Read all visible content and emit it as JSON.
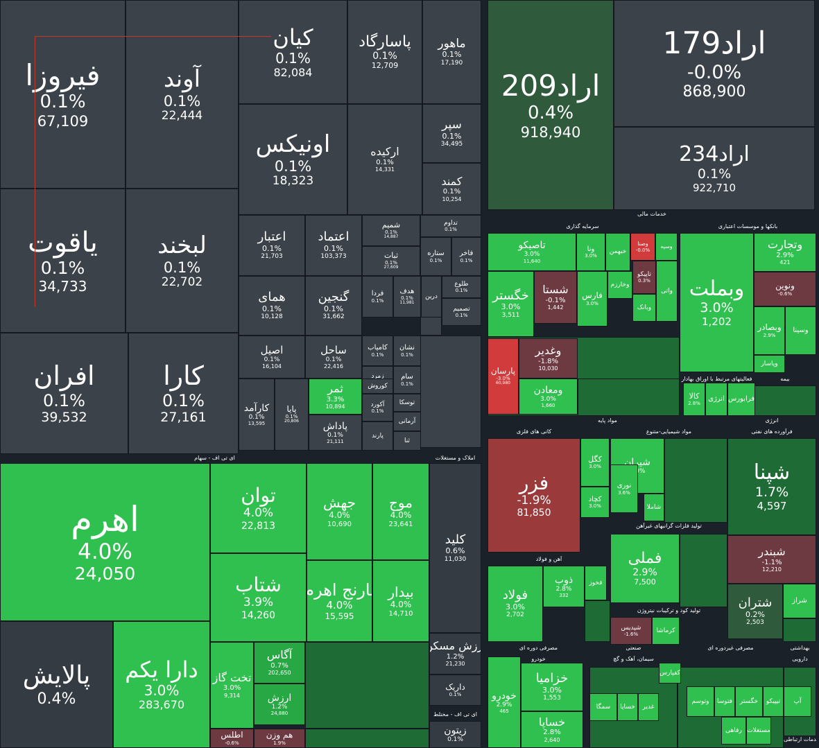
{
  "colors": {
    "neutral": "#3c4249",
    "neutral_dark": "#353b42",
    "green": "#30c04f",
    "green_mid": "#28a745",
    "green_dark": "#1e6b35",
    "green_dim": "#2f5a3c",
    "red": "#d13b3b",
    "red_dark": "#9a3a3a",
    "maroon": "#6e3a42",
    "background": "#1b2129"
  },
  "chart_data": {
    "type": "treemap",
    "groups": [
      {
        "name": "خدمات مالی"
      },
      {
        "name": "سرمایه گذاری"
      },
      {
        "name": "بانکها و موسسات اعتباری"
      },
      {
        "name": "فعالیتهای مرتبط با اوراق بهادار"
      },
      {
        "name": "بیمه"
      },
      {
        "name": "مواد پایه"
      },
      {
        "name": "کانی های فلزی"
      },
      {
        "name": "مواد شیمیایی-متنوع"
      },
      {
        "name": "تولید فلزات گرانبهای غیرآهن"
      },
      {
        "name": "آهن و فولاد"
      },
      {
        "name": "تولید کود و ترکیبات نیتروژن"
      },
      {
        "name": "انرژی"
      },
      {
        "name": "فرآورده های نفتی"
      },
      {
        "name": "ای تی اف - سهام"
      },
      {
        "name": "املاک و مستغلات"
      },
      {
        "name": "ای تی اف - مختلط"
      },
      {
        "name": "مصرفی دوره ای"
      },
      {
        "name": "خودرو"
      },
      {
        "name": "صنعتی"
      },
      {
        "name": "سیمان، آهک و گچ"
      },
      {
        "name": "مصرفی غیردوره ای"
      },
      {
        "name": "بهداشتی"
      },
      {
        "name": "دارویی"
      },
      {
        "name": "خدمات ارتباطی"
      }
    ],
    "tiles": [
      {
        "symbol": "فیروزا",
        "change": "0.1%",
        "volume": "67,109"
      },
      {
        "symbol": "آوند",
        "change": "0.1%",
        "volume": "22,444"
      },
      {
        "symbol": "کیان",
        "change": "0.1%",
        "volume": "82,084"
      },
      {
        "symbol": "پاسارگاد",
        "change": "0.1%",
        "volume": "12,709"
      },
      {
        "symbol": "ماهور",
        "change": "0.1%",
        "volume": "17,190"
      },
      {
        "symbol": "اونیکس",
        "change": "0.1%",
        "volume": "18,323"
      },
      {
        "symbol": "ارکیده",
        "change": "0.1%",
        "volume": "14,331"
      },
      {
        "symbol": "سپر",
        "change": "0.1%",
        "volume": "34,495"
      },
      {
        "symbol": "کمند",
        "change": "0.1%",
        "volume": "10,254"
      },
      {
        "symbol": "یاقوت",
        "change": "0.1%",
        "volume": "34,733"
      },
      {
        "symbol": "لبخند",
        "change": "0.1%",
        "volume": "22,702"
      },
      {
        "symbol": "اعتبار",
        "change": "0.1%",
        "volume": "21,703"
      },
      {
        "symbol": "اعتماد",
        "change": "0.1%",
        "volume": "103,373"
      },
      {
        "symbol": "شمیم",
        "change": "0.1%",
        "volume": "14,887"
      },
      {
        "symbol": "ثبات",
        "change": "0.1%",
        "volume": "27,609"
      },
      {
        "symbol": "تداوم",
        "change": "0.1%",
        "volume": ""
      },
      {
        "symbol": "ستاره",
        "change": "0.1%",
        "volume": ""
      },
      {
        "symbol": "فاخر",
        "change": "0.1%",
        "volume": ""
      },
      {
        "symbol": "همای",
        "change": "0.1%",
        "volume": "10,128"
      },
      {
        "symbol": "گنجین",
        "change": "0.1%",
        "volume": "31,662"
      },
      {
        "symbol": "فردا",
        "change": "0.1%",
        "volume": ""
      },
      {
        "symbol": "هدف",
        "change": "0.1%",
        "volume": "11,981"
      },
      {
        "symbol": "درین",
        "change": "",
        "volume": ""
      },
      {
        "symbol": "طلوع",
        "change": "0.1%",
        "volume": ""
      },
      {
        "symbol": "تصمیم",
        "change": "0.1%",
        "volume": ""
      },
      {
        "symbol": "افران",
        "change": "0.1%",
        "volume": "39,532"
      },
      {
        "symbol": "کارا",
        "change": "0.1%",
        "volume": "27,161"
      },
      {
        "symbol": "اصیل",
        "change": "0.1%",
        "volume": "16,104"
      },
      {
        "symbol": "ساحل",
        "change": "0.1%",
        "volume": "22,416"
      },
      {
        "symbol": "کامیاب",
        "change": "0.1%",
        "volume": ""
      },
      {
        "symbol": "نشان",
        "change": "0.1%",
        "volume": ""
      },
      {
        "symbol": "زمرد",
        "change": "",
        "volume": ""
      },
      {
        "symbol": "کوروش",
        "change": "",
        "volume": ""
      },
      {
        "symbol": "سام",
        "change": "0.1%",
        "volume": ""
      },
      {
        "symbol": "ثمر",
        "change": "3.3%",
        "volume": "10,894"
      },
      {
        "symbol": "آکورد",
        "change": "0.1%",
        "volume": ""
      },
      {
        "symbol": "توسکا",
        "change": "",
        "volume": ""
      },
      {
        "symbol": "کارآمد",
        "change": "0.1%",
        "volume": "13,595"
      },
      {
        "symbol": "پایا",
        "change": "0.1%",
        "volume": "20,806"
      },
      {
        "symbol": "پاداش",
        "change": "0.1%",
        "volume": "21,111"
      },
      {
        "symbol": "آرمانی",
        "change": "",
        "volume": ""
      },
      {
        "symbol": "پارند",
        "change": "",
        "volume": ""
      },
      {
        "symbol": "ثنا",
        "change": "",
        "volume": ""
      },
      {
        "symbol": "اراد209",
        "change": "0.4%",
        "volume": "918,940"
      },
      {
        "symbol": "اراد179",
        "change": "-0.0%",
        "volume": "868,900"
      },
      {
        "symbol": "اراد234",
        "change": "0.1%",
        "volume": "922,710"
      },
      {
        "symbol": "تاصیکو",
        "change": "3.0%",
        "volume": "11,640"
      },
      {
        "symbol": "ونا",
        "change": "3.0%",
        "volume": ""
      },
      {
        "symbol": "خبهمن",
        "change": "",
        "volume": ""
      },
      {
        "symbol": "وصنا",
        "change": "-0.0%",
        "volume": ""
      },
      {
        "symbol": "وسپه",
        "change": "",
        "volume": ""
      },
      {
        "symbol": "خگستر",
        "change": "3.0%",
        "volume": "3,511"
      },
      {
        "symbol": "شستا",
        "change": "-0.1%",
        "volume": "1,442"
      },
      {
        "symbol": "فارس",
        "change": "3.0%",
        "volume": ""
      },
      {
        "symbol": "وخارزم",
        "change": "",
        "volume": ""
      },
      {
        "symbol": "تاپیکو",
        "change": "0.3%",
        "volume": ""
      },
      {
        "symbol": "وبانک",
        "change": "",
        "volume": ""
      },
      {
        "symbol": "واتی",
        "change": "",
        "volume": ""
      },
      {
        "symbol": "وتجارت",
        "change": "2.9%",
        "volume": "421"
      },
      {
        "symbol": "وبملت",
        "change": "3.0%",
        "volume": "1,202"
      },
      {
        "symbol": "ونوین",
        "change": "-0.6%",
        "volume": ""
      },
      {
        "symbol": "وبصادر",
        "change": "2.9%",
        "volume": ""
      },
      {
        "symbol": "وسینا",
        "change": "",
        "volume": ""
      },
      {
        "symbol": "وپاسار",
        "change": "",
        "volume": ""
      },
      {
        "symbol": "پارسان",
        "change": "-3.0%",
        "volume": "60,980"
      },
      {
        "symbol": "وغدیر",
        "change": "-1.8%",
        "volume": "10,030"
      },
      {
        "symbol": "ومعادن",
        "change": "3.0%",
        "volume": "1,660"
      },
      {
        "symbol": "کالا",
        "change": "2.8%",
        "volume": ""
      },
      {
        "symbol": "انرژی",
        "change": "",
        "volume": ""
      },
      {
        "symbol": "فرابورس",
        "change": "",
        "volume": ""
      },
      {
        "symbol": "فزر",
        "change": "-1.9%",
        "volume": "81,850"
      },
      {
        "symbol": "کگل",
        "change": "3.0%",
        "volume": ""
      },
      {
        "symbol": "کچاد",
        "change": "3.0%",
        "volume": ""
      },
      {
        "symbol": "شیران",
        "change": "3.0%",
        "volume": ""
      },
      {
        "symbol": "نوری",
        "change": "3.6%",
        "volume": ""
      },
      {
        "symbol": "شاملا",
        "change": "",
        "volume": ""
      },
      {
        "symbol": "فملی",
        "change": "2.9%",
        "volume": "7,500"
      },
      {
        "symbol": "فولاد",
        "change": "3.0%",
        "volume": "2,702"
      },
      {
        "symbol": "ذوب",
        "change": "2.8%",
        "volume": "332"
      },
      {
        "symbol": "فخوز",
        "change": "",
        "volume": ""
      },
      {
        "symbol": "شپدیس",
        "change": "-1.6%",
        "volume": ""
      },
      {
        "symbol": "کرماشا",
        "change": "",
        "volume": ""
      },
      {
        "symbol": "شپنا",
        "change": "1.7%",
        "volume": "4,597"
      },
      {
        "symbol": "شبندر",
        "change": "-1.1%",
        "volume": "12,210"
      },
      {
        "symbol": "شتران",
        "change": "0.2%",
        "volume": "2,503"
      },
      {
        "symbol": "شراز",
        "change": "",
        "volume": ""
      },
      {
        "symbol": "اهرم",
        "change": "4.0%",
        "volume": "24,050"
      },
      {
        "symbol": "توان",
        "change": "4.0%",
        "volume": "22,813"
      },
      {
        "symbol": "جهش",
        "change": "4.0%",
        "volume": "10,690"
      },
      {
        "symbol": "موج",
        "change": "4.0%",
        "volume": "23,641"
      },
      {
        "symbol": "کلید",
        "change": "0.6%",
        "volume": "11,030"
      },
      {
        "symbol": "شتاب",
        "change": "3.9%",
        "volume": "14,260"
      },
      {
        "symbol": "نارنج اهرم",
        "change": "4.0%",
        "volume": "15,595"
      },
      {
        "symbol": "بیدار",
        "change": "4.0%",
        "volume": "14,710"
      },
      {
        "symbol": "پالایش",
        "change": "0.4%",
        "volume": ""
      },
      {
        "symbol": "دارا یکم",
        "change": "3.0%",
        "volume": "283,670"
      },
      {
        "symbol": "تخت گاز",
        "change": "3.0%",
        "volume": "9,314"
      },
      {
        "symbol": "آگاس",
        "change": "0.7%",
        "volume": "202,650"
      },
      {
        "symbol": "ارزش",
        "change": "1.2%",
        "volume": "24,880"
      },
      {
        "symbol": "ارزش مسکن",
        "change": "1.2%",
        "volume": "21,230"
      },
      {
        "symbol": "داریک",
        "change": "0.1%",
        "volume": ""
      },
      {
        "symbol": "زیتون",
        "change": "0.1%",
        "volume": ""
      },
      {
        "symbol": "اطلس",
        "change": "-0.6%",
        "volume": ""
      },
      {
        "symbol": "هم وزن",
        "change": "1.9%",
        "volume": ""
      },
      {
        "symbol": "خودرو",
        "change": "2.9%",
        "volume": "465"
      },
      {
        "symbol": "خزامیا",
        "change": "3.0%",
        "volume": "1,553"
      },
      {
        "symbol": "خساپا",
        "change": "2.8%",
        "volume": "2,640"
      },
      {
        "symbol": "سمگا",
        "change": "",
        "volume": ""
      },
      {
        "symbol": "خساپا",
        "change": "",
        "volume": ""
      },
      {
        "symbol": "غدیر",
        "change": "",
        "volume": ""
      },
      {
        "symbol": "کفپارس",
        "change": "",
        "volume": ""
      },
      {
        "symbol": "وتوسم",
        "change": "",
        "volume": ""
      },
      {
        "symbol": "فتوسا",
        "change": "",
        "volume": ""
      },
      {
        "symbol": "خگستر",
        "change": "",
        "volume": ""
      },
      {
        "symbol": "تیپیکو",
        "change": "",
        "volume": ""
      },
      {
        "symbol": "آپ",
        "change": "",
        "volume": ""
      },
      {
        "symbol": "رفاهی",
        "change": "",
        "volume": ""
      },
      {
        "symbol": "مستغلات",
        "change": "",
        "volume": ""
      }
    ]
  },
  "sections": {
    "s1": "خدمات مالی",
    "s2": "سرمایه گذاری",
    "s3": "بانکها و موسسات اعتباری",
    "s4": "فعالیتهای مرتبط با اوراق بهادار",
    "s5": "بیمه",
    "s6": "مواد پایه",
    "s7": "کانی های فلزی",
    "s8": "مواد شیمیایی-متنوع",
    "s9": "تولید فلزات گرانبهای غیرآهن",
    "s10": "آهن و فولاد",
    "s11": "تولید کود و ترکیبات نیتروژن",
    "s12": "انرژی",
    "s13": "فرآورده های نفتی",
    "s14": "ای تی اف - سهام",
    "s15": "املاک و مستغلات",
    "s16": "ای تی اف - مختلط",
    "s17": "مصرفی دوره ای",
    "s18": "خودرو",
    "s19": "صنعتی",
    "s20": "سیمان، آهک و گچ",
    "s21": "مصرفی غیردوره ای",
    "s22": "بهداشتی",
    "s23": "دارویی",
    "s24": "خدمات ارتباطی"
  }
}
